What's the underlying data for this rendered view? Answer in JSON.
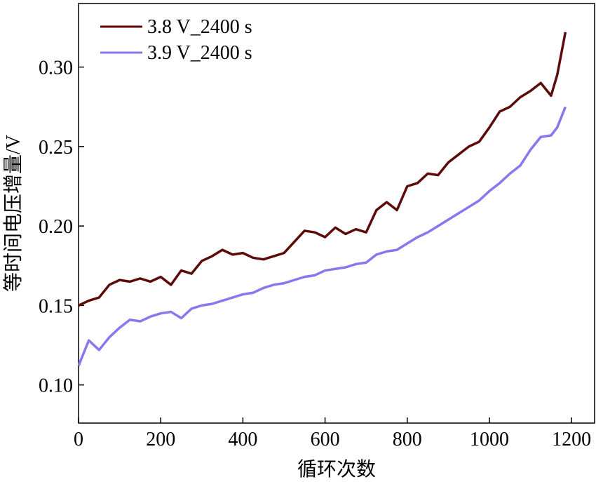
{
  "chart_data": {
    "type": "line",
    "xlabel": "循环次数",
    "ylabel": "等时间电压增量/V",
    "x": [
      0,
      25,
      50,
      75,
      100,
      125,
      150,
      175,
      200,
      225,
      250,
      275,
      300,
      325,
      350,
      375,
      400,
      425,
      450,
      475,
      500,
      525,
      550,
      575,
      600,
      625,
      650,
      675,
      700,
      725,
      750,
      775,
      800,
      825,
      850,
      875,
      900,
      925,
      950,
      975,
      1000,
      1025,
      1050,
      1075,
      1100,
      1125,
      1150,
      1165,
      1185
    ],
    "series": [
      {
        "name": "3.8 V_2400 s",
        "color": "#5c0a0a",
        "values": [
          0.15,
          0.153,
          0.155,
          0.163,
          0.166,
          0.165,
          0.167,
          0.165,
          0.168,
          0.163,
          0.172,
          0.17,
          0.178,
          0.181,
          0.185,
          0.182,
          0.183,
          0.18,
          0.179,
          0.181,
          0.183,
          0.19,
          0.197,
          0.196,
          0.193,
          0.199,
          0.195,
          0.198,
          0.196,
          0.21,
          0.215,
          0.21,
          0.225,
          0.227,
          0.233,
          0.232,
          0.24,
          0.245,
          0.25,
          0.253,
          0.262,
          0.272,
          0.275,
          0.281,
          0.285,
          0.29,
          0.282,
          0.295,
          0.322
        ]
      },
      {
        "name": "3.9 V_2400 s",
        "color": "#8877ee",
        "values": [
          0.112,
          0.128,
          0.122,
          0.13,
          0.136,
          0.141,
          0.14,
          0.143,
          0.145,
          0.146,
          0.142,
          0.148,
          0.15,
          0.151,
          0.153,
          0.155,
          0.157,
          0.158,
          0.161,
          0.163,
          0.164,
          0.166,
          0.168,
          0.169,
          0.172,
          0.173,
          0.174,
          0.176,
          0.177,
          0.182,
          0.184,
          0.185,
          0.189,
          0.193,
          0.196,
          0.2,
          0.204,
          0.208,
          0.212,
          0.216,
          0.222,
          0.227,
          0.233,
          0.238,
          0.248,
          0.256,
          0.257,
          0.262,
          0.275
        ]
      }
    ],
    "xlim": [
      0,
      1256
    ],
    "xticks": [
      0,
      200,
      400,
      600,
      800,
      1000,
      1200
    ],
    "ylim": [
      0.076,
      0.34
    ],
    "yticks": [
      {
        "value": 0.1,
        "label": "0.10"
      },
      {
        "value": 0.15,
        "label": "0.15"
      },
      {
        "value": 0.2,
        "label": "0.20"
      },
      {
        "value": 0.25,
        "label": "0.25"
      },
      {
        "value": 0.3,
        "label": "0.30"
      }
    ],
    "legend": "upper left"
  }
}
